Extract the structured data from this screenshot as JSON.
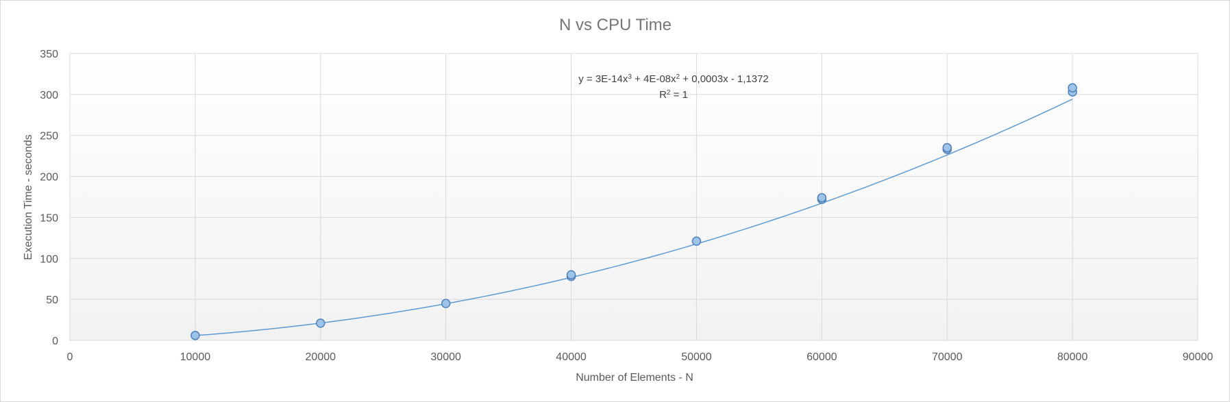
{
  "chart_data": {
    "type": "scatter",
    "title": "N vs CPU Time",
    "xlabel": "Number of Elements - N",
    "ylabel": "Execution Time - seconds",
    "xlim": [
      0,
      90000
    ],
    "ylim": [
      0,
      350
    ],
    "x_ticks": [
      "0",
      "10000",
      "20000",
      "30000",
      "40000",
      "50000",
      "60000",
      "70000",
      "80000",
      "90000"
    ],
    "y_ticks": [
      "0",
      "50",
      "100",
      "150",
      "200",
      "250",
      "300",
      "350"
    ],
    "grid": true,
    "background_gradient": [
      "#ffffff",
      "#f2f2f2"
    ],
    "series": [
      {
        "marker_color": "#9dc3e6",
        "marker_edge_color": "#4f81bd",
        "points": [
          [
            10000,
            6
          ],
          [
            20000,
            21
          ],
          [
            30000,
            45
          ],
          [
            40000,
            78
          ],
          [
            40000,
            80
          ],
          [
            50000,
            121
          ],
          [
            60000,
            172
          ],
          [
            60000,
            174
          ],
          [
            70000,
            233
          ],
          [
            70000,
            235
          ],
          [
            80000,
            303
          ],
          [
            80000,
            308
          ]
        ]
      }
    ],
    "trendline": {
      "type": "polynomial",
      "order": 3,
      "color": "#5b9bd5",
      "coefficients": [
        3e-14,
        4e-08,
        0.0003,
        -1.1372
      ],
      "x_range": [
        10000,
        80000
      ],
      "equation_main": "y = 3E-14x",
      "equation_sup1": "3",
      "equation_mid": " + 4E-08x",
      "equation_sup2": "2",
      "equation_end": " + 0,0003x - 1,1372",
      "r2_main": "R",
      "r2_sup": "2",
      "r2_end": " = 1"
    }
  }
}
